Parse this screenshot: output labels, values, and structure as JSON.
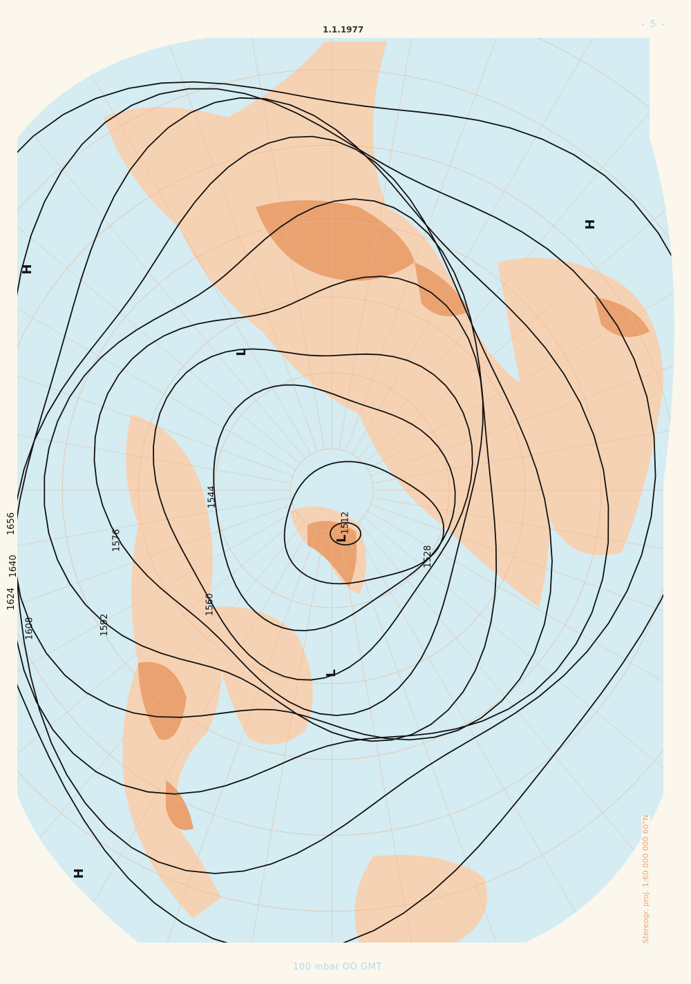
{
  "header": {
    "date": "1.1.1977",
    "page_number": "- 5 -"
  },
  "footer": {
    "caption": "100 mbar   OO GMT"
  },
  "projection": {
    "scale_text": "Stereogr. proj. 1:60 000 000   60°N"
  },
  "colors": {
    "sea": "#d4ecf2",
    "land": "#f6d2b4",
    "high_terrain": "#eaa270",
    "contour": "#111111",
    "grid": "#e9b690",
    "paper": "#fbf7ec"
  },
  "contours": {
    "unit": "geopotential dam",
    "values": [
      "1512",
      "1528",
      "1544",
      "1560",
      "1576",
      "1592",
      "1608",
      "1624",
      "1640",
      "1656"
    ]
  },
  "pressure_systems": [
    {
      "label": "H"
    },
    {
      "label": "H"
    },
    {
      "label": "H"
    },
    {
      "label": "L"
    },
    {
      "label": "L"
    },
    {
      "label": "L"
    }
  ]
}
